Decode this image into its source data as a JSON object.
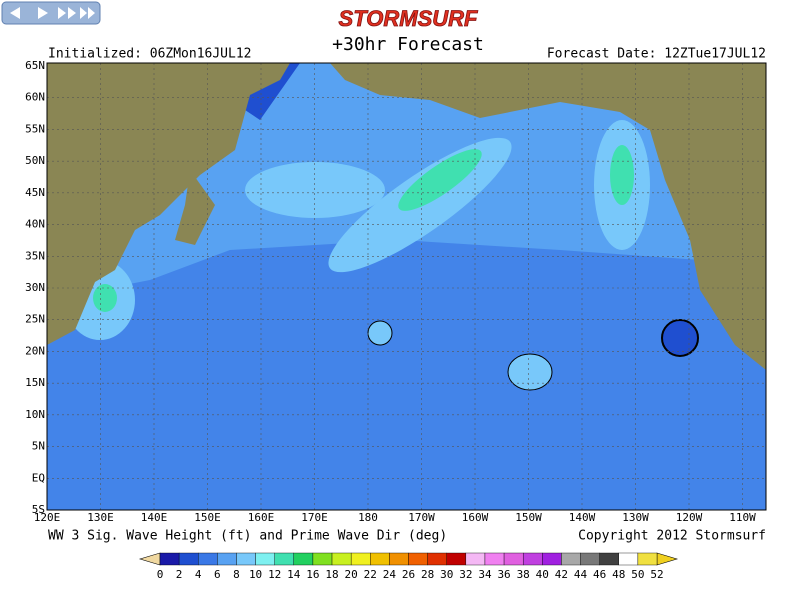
{
  "header": {
    "title": "STORMSURF",
    "subtitle": "+30hr Forecast",
    "initialized": "Initialized: 06ZMon16JUL12",
    "forecast_date": "Forecast Date: 12ZTue17JUL12"
  },
  "map": {
    "lat_labels": [
      "65N",
      "60N",
      "55N",
      "50N",
      "45N",
      "40N",
      "35N",
      "30N",
      "25N",
      "20N",
      "15N",
      "10N",
      "5N",
      "EQ",
      "5S"
    ],
    "lon_labels": [
      "120E",
      "130E",
      "140E",
      "150E",
      "160E",
      "170E",
      "180",
      "170W",
      "160W",
      "150W",
      "140W",
      "130W",
      "120W",
      "110W"
    ]
  },
  "footer": {
    "caption": "WW 3 Sig. Wave Height (ft) and Prime Wave Dir (deg)",
    "copyright": "Copyright 2012 Stormsurf"
  },
  "colorbar": {
    "labels": [
      0,
      2,
      4,
      6,
      8,
      10,
      12,
      14,
      16,
      18,
      20,
      22,
      24,
      26,
      28,
      30,
      32,
      34,
      36,
      38,
      40,
      42,
      44,
      46,
      48,
      50,
      52
    ],
    "colors": [
      "#1a1aa8",
      "#1f4fd0",
      "#3a78e6",
      "#58a2f2",
      "#78c8fa",
      "#7ef0f0",
      "#40e0b0",
      "#22d060",
      "#80e020",
      "#c8f020",
      "#f0f020",
      "#f0c000",
      "#f09000",
      "#f06000",
      "#e03000",
      "#c00000",
      "#f4b8f4",
      "#f080f0",
      "#e060e0",
      "#c040e0",
      "#a020e0",
      "#a8a8a8",
      "#787878",
      "#404040",
      "#ffffff",
      "#f0e040"
    ],
    "under_color": "#f0d8a0",
    "over_color": "#f0d020"
  }
}
